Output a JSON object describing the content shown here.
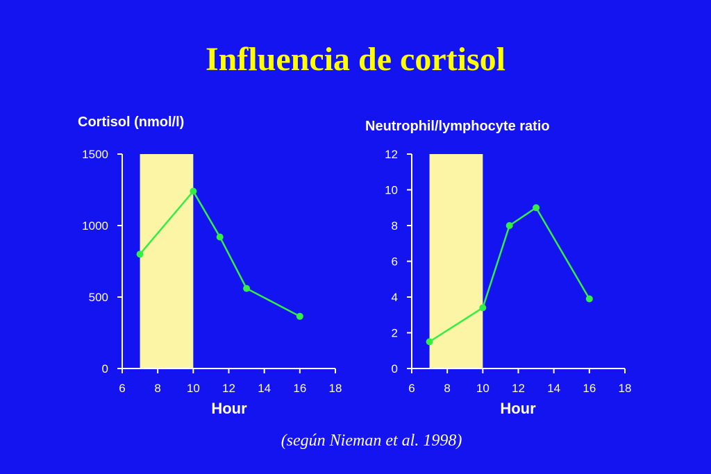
{
  "slide": {
    "title": "Influencia de cortisol",
    "citation": "(según Nieman et al. 1998)"
  },
  "colors": {
    "background": "#1414f0",
    "title": "#ffff00",
    "text": "#ffffff",
    "line": "#33ee44",
    "shade": "#fdf5a6"
  },
  "chart_data": [
    {
      "type": "line",
      "ylabel": "Cortisol (nmol/l)",
      "xlabel": "Hour",
      "xlim": [
        6,
        18
      ],
      "ylim": [
        0,
        1500
      ],
      "xticks": [
        6,
        8,
        10,
        12,
        14,
        16,
        18
      ],
      "yticks": [
        0,
        500,
        1000,
        1500
      ],
      "shaded_x_range": [
        7,
        10
      ],
      "x": [
        7,
        10,
        11.5,
        13,
        16
      ],
      "y": [
        800,
        1240,
        920,
        560,
        365
      ]
    },
    {
      "type": "line",
      "ylabel": "Neutrophil/lymphocyte ratio",
      "xlabel": "Hour",
      "xlim": [
        6,
        18
      ],
      "ylim": [
        0,
        12
      ],
      "xticks": [
        6,
        8,
        10,
        12,
        14,
        16,
        18
      ],
      "yticks": [
        0,
        2,
        4,
        6,
        8,
        10,
        12
      ],
      "shaded_x_range": [
        7,
        10
      ],
      "x": [
        7,
        10,
        11.5,
        13,
        16
      ],
      "y": [
        1.5,
        3.4,
        8.0,
        9.0,
        3.9
      ]
    }
  ]
}
